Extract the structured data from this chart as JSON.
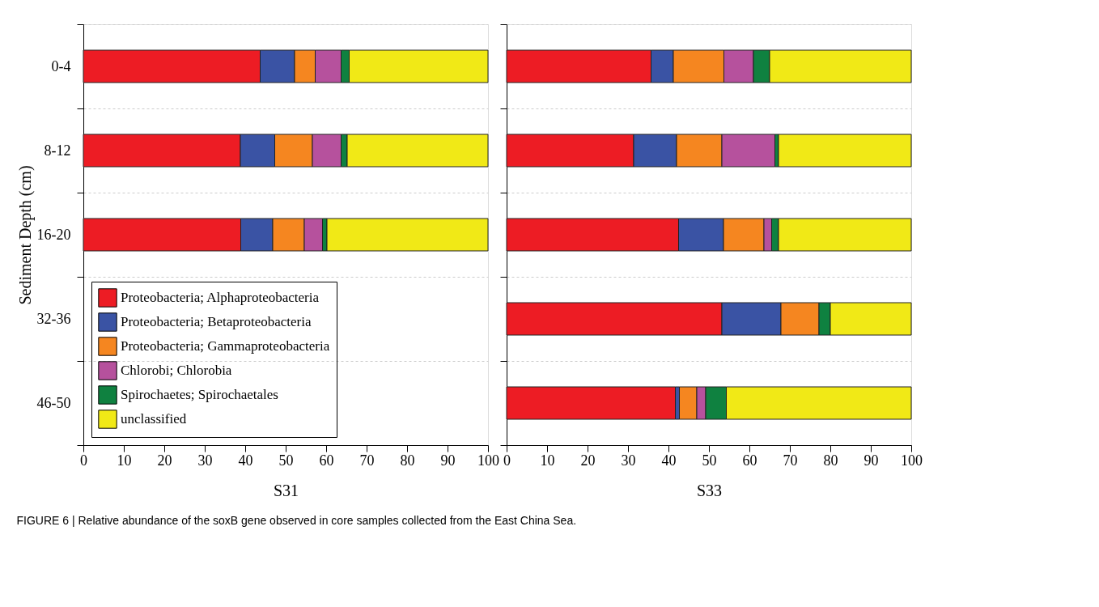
{
  "chart_data": [
    {
      "type": "bar",
      "orientation": "horizontal",
      "stacked": true,
      "xlabel": "S31",
      "ylabel": "Sediment Depth (cm)",
      "categories": [
        "0-4",
        "8-12",
        "16-20",
        "32-36",
        "46-50"
      ],
      "xlim": [
        0,
        100
      ],
      "xticks": [
        0,
        10,
        20,
        30,
        40,
        50,
        60,
        70,
        80,
        90,
        100
      ],
      "grid": "y",
      "legend": "bottom left",
      "annotations": [
        "FIGURE 6 | Relative abundance of the soxB gene observed in core samples collected from the East China Sea."
      ],
      "series": [
        {
          "name": "Proteobacteria; Alphaproteobacteria",
          "color": "#ed1c24",
          "values": [
            43.7,
            38.8,
            38.9,
            null,
            null
          ]
        },
        {
          "name": "Proteobacteria; Betaproteobacteria",
          "color": "#3a53a4",
          "values": [
            8.5,
            8.5,
            7.9,
            null,
            null
          ]
        },
        {
          "name": "Proteobacteria; Gammaproteobacteria",
          "color": "#f58620",
          "values": [
            5.1,
            9.3,
            7.8,
            null,
            null
          ]
        },
        {
          "name": "Chlorobi; Chlorobia",
          "color": "#b6519d",
          "values": [
            6.4,
            7.1,
            4.5,
            null,
            null
          ]
        },
        {
          "name": "Spirochaetes; Spirochaetales",
          "color": "#0f8140",
          "values": [
            2.0,
            1.5,
            1.1,
            null,
            null
          ]
        },
        {
          "name": "unclassified",
          "color": "#f1e916",
          "values": [
            34.3,
            34.8,
            39.8,
            null,
            null
          ]
        }
      ]
    },
    {
      "type": "bar",
      "orientation": "horizontal",
      "stacked": true,
      "xlabel": "S33",
      "tick_labels": "x",
      "categories": [
        "0-4",
        "8-12",
        "16-20",
        "32-36",
        "46-50"
      ],
      "xlim": [
        0,
        100
      ],
      "xticks": [
        0,
        10,
        20,
        30,
        40,
        50,
        60,
        70,
        80,
        90,
        100
      ],
      "grid": "y",
      "series": [
        {
          "color": "#ed1c24",
          "values": [
            35.7,
            31.4,
            42.5,
            53.2,
            41.7
          ]
        },
        {
          "color": "#3a53a4",
          "values": [
            5.5,
            10.6,
            11.1,
            14.6,
            1.0
          ]
        },
        {
          "color": "#f58620",
          "values": [
            12.5,
            11.2,
            10.0,
            9.4,
            4.3
          ]
        },
        {
          "color": "#b6519d",
          "values": [
            7.3,
            13.1,
            1.9,
            null,
            2.2
          ]
        },
        {
          "color": "#0f8140",
          "values": [
            4.0,
            0.9,
            1.7,
            2.8,
            5.1
          ]
        },
        {
          "color": "#f1e916",
          "values": [
            35.0,
            32.8,
            32.8,
            20.0,
            45.7
          ]
        }
      ]
    }
  ]
}
